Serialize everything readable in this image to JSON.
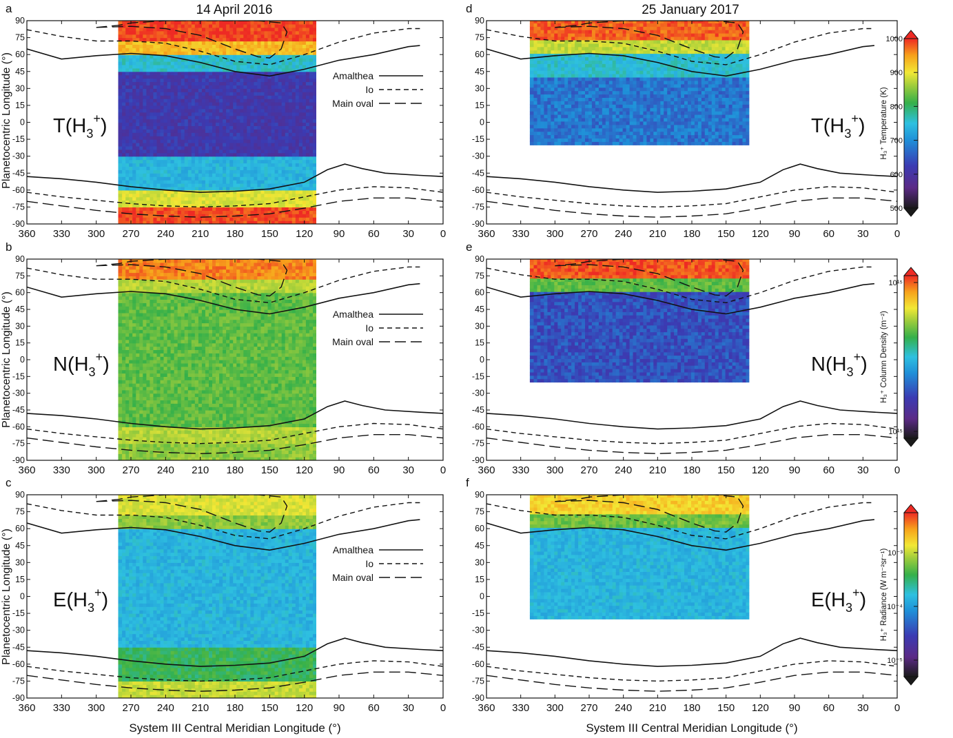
{
  "figure": {
    "col_titles": [
      "14 April 2016",
      "25 January 2017"
    ],
    "ylabel": "Planetocentric Longitude (°)",
    "xlabel": "System III Central Meridian Longitude (°)"
  },
  "legend": {
    "entries": [
      "Amalthea",
      "Io",
      "Main oval"
    ],
    "styles": [
      "solid",
      "short-dash",
      "long-dash"
    ]
  },
  "colorbars": [
    {
      "label": "H₃⁺ Temperature (K)",
      "ticks": [
        "500",
        "600",
        "700",
        "800",
        "900",
        "1000"
      ],
      "min": 500,
      "max": 1000
    },
    {
      "label": "H₃⁺ Column Density (m⁻²)",
      "ticks": [
        "10¹⁵",
        "10¹⁵"
      ]
    },
    {
      "label": "H₃⁺ Radiance (W m⁻²sr⁻¹)",
      "ticks": [
        "10⁻³",
        "10⁻⁴",
        "10⁻⁵"
      ]
    }
  ],
  "colors": {
    "scale": [
      "#1a1a1a",
      "#5b2a86",
      "#3b3bb3",
      "#1f8fd8",
      "#2ec0e0",
      "#35b04a",
      "#9ccc3c",
      "#f2e835",
      "#f7a21b",
      "#ee2a24"
    ]
  },
  "chart_data": [
    {
      "id": "a",
      "type": "heatmap",
      "quantity": "T(H3+)",
      "date": "14 April 2016",
      "xlim": [
        360,
        0
      ],
      "ylim": [
        -90,
        90
      ],
      "xticks": [
        360,
        330,
        300,
        270,
        240,
        210,
        180,
        150,
        120,
        90,
        60,
        30,
        0
      ],
      "yticks": [
        90,
        75,
        60,
        45,
        30,
        15,
        0,
        -15,
        -30,
        -45,
        -60,
        -75,
        -90
      ],
      "coverage_x": [
        110,
        280
      ],
      "legend": true,
      "bands": [
        {
          "lat": [
            72,
            90
          ],
          "level": 0.98
        },
        {
          "lat": [
            60,
            72
          ],
          "level": 0.85
        },
        {
          "lat": [
            45,
            60
          ],
          "level": 0.45
        },
        {
          "lat": [
            -30,
            45
          ],
          "level": 0.2
        },
        {
          "lat": [
            -60,
            -30
          ],
          "level": 0.42
        },
        {
          "lat": [
            -75,
            -60
          ],
          "level": 0.75
        },
        {
          "lat": [
            -90,
            -75
          ],
          "level": 0.97
        }
      ]
    },
    {
      "id": "b",
      "type": "heatmap",
      "quantity": "N(H3+)",
      "date": "14 April 2016",
      "xlim": [
        360,
        0
      ],
      "ylim": [
        -90,
        90
      ],
      "xticks": [
        360,
        330,
        300,
        270,
        240,
        210,
        180,
        150,
        120,
        90,
        60,
        30,
        0
      ],
      "yticks": [
        90,
        75,
        60,
        45,
        30,
        15,
        0,
        -15,
        -30,
        -45,
        -60,
        -75,
        -90
      ],
      "coverage_x": [
        110,
        280
      ],
      "legend": true,
      "bands": [
        {
          "lat": [
            72,
            90
          ],
          "level": 0.92
        },
        {
          "lat": [
            60,
            72
          ],
          "level": 0.7
        },
        {
          "lat": [
            -60,
            60
          ],
          "level": 0.6
        },
        {
          "lat": [
            -75,
            -60
          ],
          "level": 0.7
        },
        {
          "lat": [
            -90,
            -75
          ],
          "level": 0.65
        }
      ]
    },
    {
      "id": "c",
      "type": "heatmap",
      "quantity": "E(H3+)",
      "date": "14 April 2016",
      "xlim": [
        360,
        0
      ],
      "ylim": [
        -90,
        90
      ],
      "xticks": [
        360,
        330,
        300,
        270,
        240,
        210,
        180,
        150,
        120,
        90,
        60,
        30,
        0
      ],
      "yticks": [
        90,
        75,
        60,
        45,
        30,
        15,
        0,
        -15,
        -30,
        -45,
        -60,
        -75,
        -90
      ],
      "coverage_x": [
        110,
        280
      ],
      "legend": true,
      "bands": [
        {
          "lat": [
            72,
            90
          ],
          "level": 0.75
        },
        {
          "lat": [
            60,
            72
          ],
          "level": 0.65
        },
        {
          "lat": [
            -45,
            60
          ],
          "level": 0.42
        },
        {
          "lat": [
            -75,
            -45
          ],
          "level": 0.55
        },
        {
          "lat": [
            -90,
            -75
          ],
          "level": 0.72
        }
      ]
    },
    {
      "id": "d",
      "type": "heatmap",
      "quantity": "T(H3+)",
      "date": "25 January 2017",
      "xlim": [
        360,
        0
      ],
      "ylim": [
        -90,
        90
      ],
      "xticks": [
        360,
        330,
        300,
        270,
        240,
        210,
        180,
        150,
        120,
        90,
        60,
        30,
        0
      ],
      "yticks": [
        90,
        75,
        60,
        45,
        30,
        15,
        0,
        -15,
        -30,
        -45,
        -60,
        -75,
        -90
      ],
      "coverage_x": [
        130,
        320
      ],
      "coverage_lat": [
        -20,
        90
      ],
      "legend": false,
      "bands": [
        {
          "lat": [
            72,
            90
          ],
          "level": 0.95
        },
        {
          "lat": [
            60,
            72
          ],
          "level": 0.72
        },
        {
          "lat": [
            40,
            60
          ],
          "level": 0.45
        },
        {
          "lat": [
            -20,
            40
          ],
          "level": 0.3
        }
      ]
    },
    {
      "id": "e",
      "type": "heatmap",
      "quantity": "N(H3+)",
      "date": "25 January 2017",
      "xlim": [
        360,
        0
      ],
      "ylim": [
        -90,
        90
      ],
      "xticks": [
        360,
        330,
        300,
        270,
        240,
        210,
        180,
        150,
        120,
        90,
        60,
        30,
        0
      ],
      "yticks": [
        90,
        75,
        60,
        45,
        30,
        15,
        0,
        -15,
        -30,
        -45,
        -60,
        -75,
        -90
      ],
      "coverage_x": [
        130,
        320
      ],
      "coverage_lat": [
        -20,
        90
      ],
      "legend": false,
      "bands": [
        {
          "lat": [
            72,
            90
          ],
          "level": 0.96
        },
        {
          "lat": [
            60,
            72
          ],
          "level": 0.6
        },
        {
          "lat": [
            -20,
            60
          ],
          "level": 0.25
        }
      ]
    },
    {
      "id": "f",
      "type": "heatmap",
      "quantity": "E(H3+)",
      "date": "25 January 2017",
      "xlim": [
        360,
        0
      ],
      "ylim": [
        -90,
        90
      ],
      "xticks": [
        360,
        330,
        300,
        270,
        240,
        210,
        180,
        150,
        120,
        90,
        60,
        30,
        0
      ],
      "yticks": [
        90,
        75,
        60,
        45,
        30,
        15,
        0,
        -15,
        -30,
        -45,
        -60,
        -75,
        -90
      ],
      "coverage_x": [
        130,
        320
      ],
      "coverage_lat": [
        -20,
        90
      ],
      "legend": false,
      "bands": [
        {
          "lat": [
            72,
            90
          ],
          "level": 0.82
        },
        {
          "lat": [
            60,
            72
          ],
          "level": 0.62
        },
        {
          "lat": [
            -20,
            60
          ],
          "level": 0.42
        }
      ]
    }
  ],
  "overlays": {
    "north_amalthea": [
      [
        360,
        65
      ],
      [
        330,
        56
      ],
      [
        300,
        59
      ],
      [
        270,
        61
      ],
      [
        240,
        59
      ],
      [
        210,
        53
      ],
      [
        180,
        45
      ],
      [
        150,
        41
      ],
      [
        120,
        47
      ],
      [
        90,
        55
      ],
      [
        60,
        60
      ],
      [
        30,
        67
      ],
      [
        20,
        68
      ]
    ],
    "north_io": [
      [
        360,
        82
      ],
      [
        330,
        76
      ],
      [
        300,
        72
      ],
      [
        270,
        72
      ],
      [
        240,
        70
      ],
      [
        210,
        63
      ],
      [
        180,
        54
      ],
      [
        150,
        51
      ],
      [
        120,
        60
      ],
      [
        90,
        71
      ],
      [
        60,
        79
      ],
      [
        30,
        83
      ],
      [
        20,
        83
      ]
    ],
    "north_mainoval": [
      [
        300,
        84
      ],
      [
        270,
        85
      ],
      [
        240,
        83
      ],
      [
        210,
        77
      ],
      [
        180,
        65
      ],
      [
        160,
        58
      ],
      [
        150,
        57
      ],
      [
        140,
        65
      ],
      [
        135,
        80
      ],
      [
        140,
        88
      ],
      [
        160,
        90
      ],
      [
        240,
        90
      ],
      [
        270,
        88
      ],
      [
        280,
        86
      ],
      [
        300,
        84
      ]
    ],
    "south_amalthea": [
      [
        360,
        -48
      ],
      [
        330,
        -50
      ],
      [
        300,
        -53
      ],
      [
        270,
        -57
      ],
      [
        240,
        -60
      ],
      [
        210,
        -62
      ],
      [
        180,
        -61
      ],
      [
        150,
        -59
      ],
      [
        120,
        -53
      ],
      [
        100,
        -42
      ],
      [
        85,
        -37
      ],
      [
        70,
        -41
      ],
      [
        50,
        -45
      ],
      [
        20,
        -47
      ],
      [
        0,
        -48
      ]
    ],
    "south_io": [
      [
        360,
        -62
      ],
      [
        330,
        -66
      ],
      [
        300,
        -69
      ],
      [
        270,
        -72
      ],
      [
        240,
        -74
      ],
      [
        210,
        -75
      ],
      [
        180,
        -74
      ],
      [
        150,
        -72
      ],
      [
        120,
        -66
      ],
      [
        90,
        -60
      ],
      [
        60,
        -57
      ],
      [
        30,
        -58
      ],
      [
        0,
        -62
      ]
    ],
    "south_mainoval": [
      [
        360,
        -70
      ],
      [
        330,
        -74
      ],
      [
        300,
        -78
      ],
      [
        270,
        -81
      ],
      [
        240,
        -83
      ],
      [
        210,
        -84
      ],
      [
        180,
        -83
      ],
      [
        150,
        -81
      ],
      [
        120,
        -76
      ],
      [
        90,
        -70
      ],
      [
        60,
        -67
      ],
      [
        30,
        -67
      ],
      [
        0,
        -70
      ]
    ]
  },
  "panel_labels": [
    "a",
    "b",
    "c",
    "d",
    "e",
    "f"
  ],
  "panel_quantities": [
    "T(H",
    "N(H",
    "E(H",
    "T(H",
    "N(H",
    "E(H"
  ],
  "sub_sup": {
    "sub": "3",
    "sup": "+",
    "close": ")"
  }
}
